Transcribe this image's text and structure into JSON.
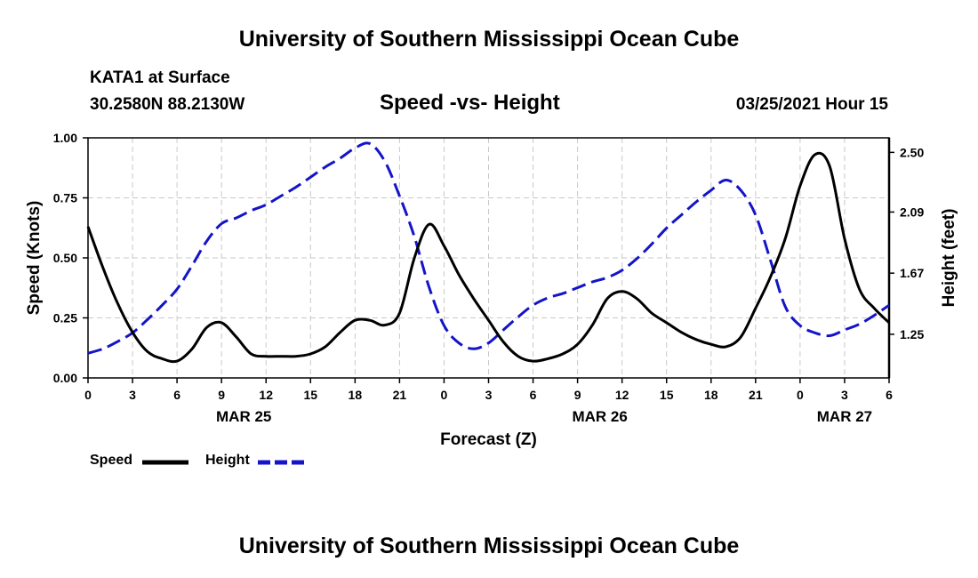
{
  "header": {
    "title": "University of Southern Mississippi Ocean Cube",
    "station": "KATA1 at Surface",
    "coordinates": "30.2580N 88.2130W",
    "chart_title": "Speed -vs- Height",
    "datetime": "03/25/2021 Hour 15"
  },
  "footer": {
    "title": "University of Southern Mississippi Ocean Cube"
  },
  "colors": {
    "speed": "#000000",
    "height": "#1414c8",
    "grid": "#c8c8c8"
  },
  "chart_data": {
    "type": "line",
    "title": "Speed -vs- Height",
    "xlabel": "Forecast (Z)",
    "ylabel": "Speed (Knots)",
    "y2label": "Height (feet)",
    "xlim": [
      0,
      54
    ],
    "ylim": [
      0,
      1.0
    ],
    "y2lim": [
      0.95,
      2.6
    ],
    "x_ticks": [
      0,
      3,
      6,
      9,
      12,
      15,
      18,
      21,
      24,
      27,
      30,
      33,
      36,
      39,
      42,
      45,
      48,
      51,
      54
    ],
    "x_tick_labels": [
      "0",
      "3",
      "6",
      "9",
      "12",
      "15",
      "18",
      "21",
      "0",
      "3",
      "6",
      "9",
      "12",
      "15",
      "18",
      "21",
      "0",
      "3",
      "6"
    ],
    "day_labels": [
      {
        "x": 10.5,
        "label": "MAR 25"
      },
      {
        "x": 34.5,
        "label": "MAR 26"
      },
      {
        "x": 51,
        "label": "MAR 27"
      }
    ],
    "y_ticks": [
      0,
      0.25,
      0.5,
      0.75,
      1.0
    ],
    "y_tick_labels": [
      "0.00",
      "0.25",
      "0.50",
      "0.75",
      "1.00"
    ],
    "y2_ticks": [
      1.25,
      1.67,
      2.09,
      2.5
    ],
    "y2_tick_labels": [
      "1.25",
      "1.67",
      "2.09",
      "2.50"
    ],
    "grid": true,
    "series": [
      {
        "name": "Speed",
        "axis": "left",
        "style": "solid",
        "x": [
          0,
          1,
          2,
          3,
          4,
          5,
          6,
          7,
          8,
          9,
          10,
          11,
          12,
          13,
          14,
          15,
          16,
          17,
          18,
          19,
          20,
          21,
          22,
          23,
          24,
          25,
          26,
          27,
          28,
          29,
          30,
          31,
          32,
          33,
          34,
          35,
          36,
          37,
          38,
          39,
          40,
          41,
          42,
          43,
          44,
          45,
          46,
          47,
          48,
          49,
          50,
          51,
          52,
          53,
          54
        ],
        "values": [
          0.63,
          0.46,
          0.31,
          0.19,
          0.11,
          0.08,
          0.07,
          0.12,
          0.21,
          0.23,
          0.17,
          0.1,
          0.09,
          0.09,
          0.09,
          0.1,
          0.13,
          0.19,
          0.24,
          0.24,
          0.22,
          0.27,
          0.5,
          0.64,
          0.55,
          0.43,
          0.33,
          0.24,
          0.15,
          0.09,
          0.07,
          0.08,
          0.1,
          0.14,
          0.22,
          0.33,
          0.36,
          0.33,
          0.27,
          0.23,
          0.19,
          0.16,
          0.14,
          0.13,
          0.17,
          0.29,
          0.42,
          0.58,
          0.8,
          0.93,
          0.88,
          0.58,
          0.37,
          0.29,
          0.23
        ]
      },
      {
        "name": "Height",
        "axis": "right",
        "style": "dashed",
        "x": [
          0,
          1,
          2,
          3,
          4,
          5,
          6,
          7,
          8,
          9,
          10,
          11,
          12,
          13,
          14,
          15,
          16,
          17,
          18,
          19,
          20,
          21,
          22,
          23,
          24,
          25,
          26,
          27,
          28,
          29,
          30,
          31,
          32,
          33,
          34,
          35,
          36,
          37,
          38,
          39,
          40,
          41,
          42,
          43,
          44,
          45,
          46,
          47,
          48,
          49,
          50,
          51,
          52,
          53,
          54
        ],
        "values": [
          1.12,
          1.15,
          1.2,
          1.26,
          1.35,
          1.45,
          1.56,
          1.72,
          1.89,
          2.01,
          2.05,
          2.1,
          2.14,
          2.2,
          2.26,
          2.33,
          2.4,
          2.46,
          2.53,
          2.56,
          2.44,
          2.2,
          1.92,
          1.57,
          1.31,
          1.19,
          1.15,
          1.19,
          1.28,
          1.37,
          1.45,
          1.5,
          1.53,
          1.57,
          1.61,
          1.64,
          1.69,
          1.77,
          1.87,
          1.98,
          2.07,
          2.16,
          2.24,
          2.31,
          2.24,
          2.07,
          1.76,
          1.44,
          1.31,
          1.26,
          1.24,
          1.28,
          1.32,
          1.38,
          1.45
        ]
      }
    ]
  }
}
